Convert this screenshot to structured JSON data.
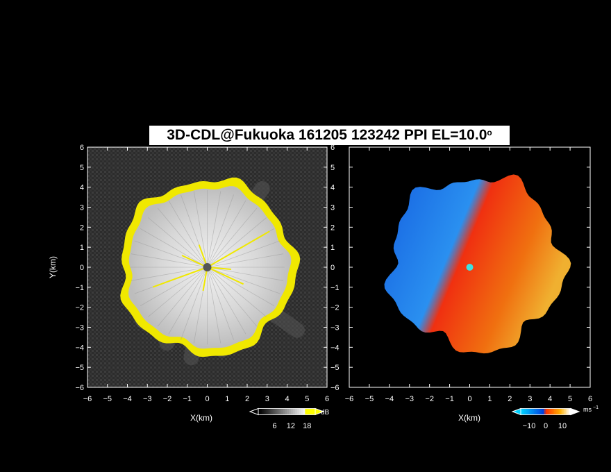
{
  "title": "3D-CDL@Fukuoka 161205 123242 PPI EL=10.0",
  "title_degree": "o",
  "chart_data": [
    {
      "type": "heatmap",
      "name": "reflectivity",
      "xlabel": "X(km)",
      "ylabel": "Y(km)",
      "xlim": [
        -6,
        6
      ],
      "ylim": [
        -6,
        6
      ],
      "xticks": [
        "-6",
        "-5",
        "-4",
        "-3",
        "-2",
        "-1",
        "0",
        "1",
        "2",
        "3",
        "4",
        "5",
        "6"
      ],
      "yticks": [
        "-6",
        "-5",
        "-4",
        "-3",
        "-2",
        "-1",
        "0",
        "1",
        "2",
        "3",
        "4",
        "5",
        "6"
      ],
      "radar_center": [
        0,
        0
      ],
      "echo_radius_km": 4.3,
      "colorbar": {
        "unit": "dB",
        "ticks": [
          "6",
          "12",
          "18"
        ],
        "tick_values": [
          6,
          12,
          18
        ],
        "range": [
          0,
          21
        ],
        "colors": [
          "#000000",
          "#ffffff",
          "#ffff00"
        ]
      },
      "colors": {
        "clutter": "#3a3a3a",
        "echo": "#d4d4d4",
        "edge": "#f0e800",
        "background": "#000000"
      }
    },
    {
      "type": "heatmap",
      "name": "doppler_velocity",
      "xlabel": "X(km)",
      "ylabel": "",
      "xlim": [
        -6,
        6
      ],
      "ylim": [
        -6,
        6
      ],
      "xticks": [
        "-6",
        "-5",
        "-4",
        "-3",
        "-2",
        "-1",
        "0",
        "1",
        "2",
        "3",
        "4",
        "5",
        "6"
      ],
      "yticks": [],
      "radar_center": [
        0,
        0
      ],
      "colorbar": {
        "unit": "ms",
        "unit_exponent": "−1",
        "ticks": [
          "−10",
          "0",
          "10"
        ],
        "tick_values": [
          -10,
          0,
          10
        ],
        "range": [
          -15,
          15
        ],
        "colors": [
          "#00d0ff",
          "#0040e0",
          "#ff3000",
          "#ffb000",
          "#ffffff"
        ]
      },
      "colors": {
        "approaching": "#1a6ee8",
        "receding": "#f05a0a",
        "far_receding": "#f0a020",
        "center": "#40e0e0"
      }
    }
  ]
}
